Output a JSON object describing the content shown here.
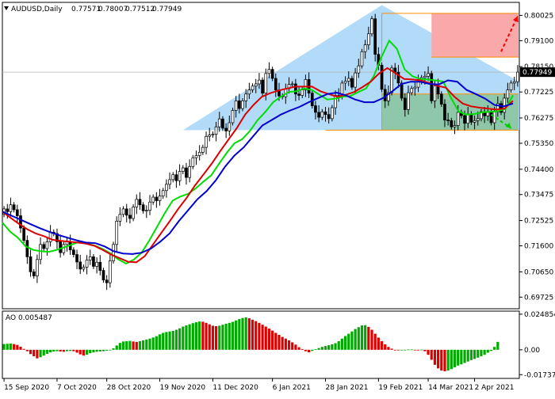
{
  "chart_data": [
    {
      "type": "candlestick",
      "title": "AUDUSD,Daily",
      "ohlc_values": [
        "0.77571",
        "0.78007",
        "0.77512",
        "0.77949"
      ],
      "last_price": 0.77949,
      "last_price_label": "0.77949",
      "ylim": [
        0.693,
        0.805
      ],
      "y_ticks": [
        {
          "label": "0.80025",
          "value": 0.80025
        },
        {
          "label": "0.79100",
          "value": 0.791
        },
        {
          "label": "0.78150",
          "value": 0.7815
        },
        {
          "label": "0.77225",
          "value": 0.77225
        },
        {
          "label": "0.76275",
          "value": 0.76275
        },
        {
          "label": "0.75350",
          "value": 0.7535
        },
        {
          "label": "0.74400",
          "value": 0.744
        },
        {
          "label": "0.73475",
          "value": 0.73475
        },
        {
          "label": "0.72525",
          "value": 0.72525
        },
        {
          "label": "0.71600",
          "value": 0.716
        },
        {
          "label": "0.70650",
          "value": 0.7065
        },
        {
          "label": "0.69725",
          "value": 0.69725
        }
      ],
      "x_ticks": [
        {
          "label": "15 Sep 2020",
          "index": 0
        },
        {
          "label": "7 Oct 2020",
          "index": 16
        },
        {
          "label": "28 Oct 2020",
          "index": 31
        },
        {
          "label": "19 Nov 2020",
          "index": 47
        },
        {
          "label": "11 Dec 2020",
          "index": 63
        },
        {
          "label": "6 Jan 2021",
          "index": 81
        },
        {
          "label": "28 Jan 2021",
          "index": 97
        },
        {
          "label": "19 Feb 2021",
          "index": 113
        },
        {
          "label": "14 Mar 2021",
          "index": 128
        },
        {
          "label": "2 Apr 2021",
          "index": 142
        }
      ],
      "candle_count": 156,
      "closes": [
        0.7295,
        0.7285,
        0.731,
        0.7292,
        0.727,
        0.7225,
        0.718,
        0.712,
        0.7065,
        0.705,
        0.711,
        0.7165,
        0.715,
        0.7175,
        0.721,
        0.7205,
        0.7175,
        0.7135,
        0.7165,
        0.7175,
        0.7145,
        0.7128,
        0.7101,
        0.7075,
        0.7082,
        0.7108,
        0.712,
        0.7085,
        0.71,
        0.707,
        0.7035,
        0.7025,
        0.7105,
        0.7165,
        0.725,
        0.7275,
        0.7295,
        0.7272,
        0.726,
        0.7302,
        0.733,
        0.731,
        0.7288,
        0.729,
        0.732,
        0.7338,
        0.7325,
        0.7342,
        0.7362,
        0.7385,
        0.7402,
        0.742,
        0.7398,
        0.7432,
        0.7445,
        0.741,
        0.745,
        0.7482,
        0.749,
        0.7502,
        0.752,
        0.756,
        0.7565,
        0.7568,
        0.7595,
        0.7624,
        0.759,
        0.758,
        0.761,
        0.7655,
        0.769,
        0.7662,
        0.769,
        0.7715,
        0.773,
        0.7744,
        0.7752,
        0.7766,
        0.7718,
        0.779,
        0.7805,
        0.7772,
        0.773,
        0.7708,
        0.7705,
        0.7735,
        0.775,
        0.7752,
        0.7715,
        0.771,
        0.773,
        0.7768,
        0.7718,
        0.7672,
        0.7648,
        0.763,
        0.765,
        0.764,
        0.7625,
        0.7665,
        0.771,
        0.7705,
        0.7755,
        0.7762,
        0.7772,
        0.774,
        0.7792,
        0.7818,
        0.787,
        0.7895,
        0.7935,
        0.799,
        0.786,
        0.782,
        0.7732,
        0.769,
        0.772,
        0.781,
        0.7795,
        0.7755,
        0.77,
        0.7658,
        0.772,
        0.7735,
        0.774,
        0.776,
        0.7775,
        0.778,
        0.779,
        0.769,
        0.7745,
        0.7715,
        0.7678,
        0.762,
        0.7618,
        0.7595,
        0.76,
        0.7648,
        0.7636,
        0.7608,
        0.7642,
        0.7612,
        0.7618,
        0.7625,
        0.765,
        0.7635,
        0.7648,
        0.761,
        0.765,
        0.768,
        0.7648,
        0.77,
        0.773,
        0.7755,
        0.776,
        0.7795
      ],
      "series": [
        {
          "key": "green",
          "color": "#00dd00",
          "values": [
            0.7245,
            0.7212,
            0.719,
            0.7158,
            0.7145,
            0.714,
            0.7138,
            0.7145,
            0.7155,
            0.7165,
            0.7175,
            0.7168,
            0.716,
            0.7148,
            0.7132,
            0.711,
            0.7095,
            0.711,
            0.7135,
            0.718,
            0.723,
            0.728,
            0.7325,
            0.734,
            0.735,
            0.737,
            0.7395,
            0.7418,
            0.746,
            0.75,
            0.7535,
            0.755,
            0.758,
            0.762,
            0.765,
            0.7685,
            0.7705,
            0.7722,
            0.7725,
            0.7735,
            0.773,
            0.7712,
            0.7695,
            0.7698,
            0.7705,
            0.7708,
            0.7722,
            0.7735,
            0.778,
            0.785,
            0.791,
            0.788,
            0.7805,
            0.778,
            0.777,
            0.7768,
            0.7765,
            0.776,
            0.77,
            0.765,
            0.764,
            0.7642,
            0.7648,
            0.765,
            0.7652,
            0.766,
            0.771
          ]
        },
        {
          "key": "red",
          "color": "#dd0000",
          "values": [
            0.7285,
            0.7262,
            0.724,
            0.722,
            0.7205,
            0.7195,
            0.7182,
            0.7178,
            0.7175,
            0.7172,
            0.7168,
            0.716,
            0.7145,
            0.7128,
            0.7115,
            0.7102,
            0.71,
            0.7122,
            0.7165,
            0.7208,
            0.725,
            0.7295,
            0.7335,
            0.738,
            0.742,
            0.746,
            0.7505,
            0.7548,
            0.759,
            0.764,
            0.7675,
            0.7705,
            0.7718,
            0.7728,
            0.7735,
            0.7742,
            0.7742,
            0.7742,
            0.7725,
            0.7715,
            0.7705,
            0.7712,
            0.7722,
            0.774,
            0.776,
            0.779,
            0.781,
            0.779,
            0.777,
            0.7768,
            0.7765,
            0.7755,
            0.7745,
            0.7738,
            0.7705,
            0.768,
            0.767,
            0.7665,
            0.7662,
            0.7658,
            0.7662,
            0.769
          ]
        },
        {
          "key": "blue",
          "color": "#0000cc",
          "values": [
            0.7285,
            0.727,
            0.7255,
            0.724,
            0.7225,
            0.7212,
            0.72,
            0.719,
            0.718,
            0.7172,
            0.717,
            0.7158,
            0.714,
            0.7132,
            0.713,
            0.7135,
            0.715,
            0.7175,
            0.7205,
            0.725,
            0.729,
            0.733,
            0.736,
            0.74,
            0.745,
            0.749,
            0.752,
            0.756,
            0.76,
            0.762,
            0.764,
            0.7655,
            0.7668,
            0.7685,
            0.77,
            0.7715,
            0.772,
            0.771,
            0.7695,
            0.7685,
            0.7685,
            0.77,
            0.7725,
            0.7752,
            0.776,
            0.776,
            0.7752,
            0.775,
            0.7765,
            0.776,
            0.773,
            0.7715,
            0.7698,
            0.7675,
            0.767,
            0.768
          ]
        }
      ],
      "annotations": {
        "triangle_fill": "#aad7f8",
        "upper_box_fill": "#f9a9a9",
        "lower_box_fill": "#8ec7a9",
        "box_border": "#ff8c00",
        "up_arrow_color": "#ff0000",
        "down_arrow_color": "#00cc00",
        "levels": [
          {
            "name": "box-top",
            "value": 0.801
          },
          {
            "name": "box-entry",
            "value": 0.785
          },
          {
            "name": "box-middle",
            "value": 0.7715
          },
          {
            "name": "box-bottom",
            "value": 0.7583
          }
        ]
      }
    },
    {
      "type": "bar",
      "title": "AO 0.005487",
      "ylim": [
        -0.02,
        0.027
      ],
      "y_ticks": [
        {
          "label": "0.024854",
          "value": 0.024854
        },
        {
          "label": "0.00",
          "value": 0.0
        },
        {
          "label": "-0.017374",
          "value": -0.017374
        }
      ],
      "up_color": "#00aa00",
      "down_color": "#dd0000",
      "values": [
        0.004,
        0.0042,
        0.0044,
        0.004,
        0.0034,
        0.0022,
        0.0006,
        -0.001,
        -0.003,
        -0.0045,
        -0.006,
        -0.0052,
        -0.004,
        -0.0028,
        -0.0018,
        -0.0012,
        -0.001,
        -0.0012,
        -0.0014,
        -0.001,
        -0.0008,
        -0.001,
        -0.002,
        -0.0032,
        -0.004,
        -0.0034,
        -0.0024,
        -0.0018,
        -0.0014,
        -0.0012,
        -0.001,
        -0.0006,
        -0.0001,
        0.001,
        0.003,
        0.0048,
        0.0058,
        0.006,
        0.0062,
        0.0058,
        0.0055,
        0.006,
        0.0066,
        0.0072,
        0.0078,
        0.0086,
        0.0095,
        0.0108,
        0.0118,
        0.0124,
        0.0128,
        0.0132,
        0.014,
        0.015,
        0.0162,
        0.017,
        0.0178,
        0.0186,
        0.0192,
        0.0198,
        0.0196,
        0.0188,
        0.0178,
        0.0168,
        0.0165,
        0.0168,
        0.0175,
        0.0182,
        0.0188,
        0.0195,
        0.0205,
        0.0215,
        0.0222,
        0.0226,
        0.022,
        0.021,
        0.02,
        0.0188,
        0.0175,
        0.0162,
        0.0148,
        0.0134,
        0.0118,
        0.0104,
        0.009,
        0.0078,
        0.0066,
        0.0052,
        0.0036,
        0.0018,
        0.0005,
        -0.001,
        -0.0018,
        -0.0008,
        0.0004,
        0.0012,
        0.002,
        0.0026,
        0.0032,
        0.0038,
        0.0046,
        0.006,
        0.0078,
        0.0096,
        0.0112,
        0.0128,
        0.0145,
        0.0158,
        0.017,
        0.0172,
        0.016,
        0.014,
        0.0112,
        0.0085,
        0.006,
        0.0038,
        0.002,
        0.0008,
        -0.0002,
        -0.0004,
        -0.0002,
        0.0,
        0.0002,
        0.0002,
        0.0,
        -0.0004,
        0.0001,
        -0.001,
        -0.0035,
        -0.007,
        -0.0105,
        -0.013,
        -0.0145,
        -0.015,
        -0.0145,
        -0.0135,
        -0.0122,
        -0.011,
        -0.0102,
        -0.0092,
        -0.0082,
        -0.0072,
        -0.0064,
        -0.0055,
        -0.0045,
        -0.0035,
        -0.002,
        -0.0008,
        0.002,
        0.0055
      ]
    }
  ]
}
